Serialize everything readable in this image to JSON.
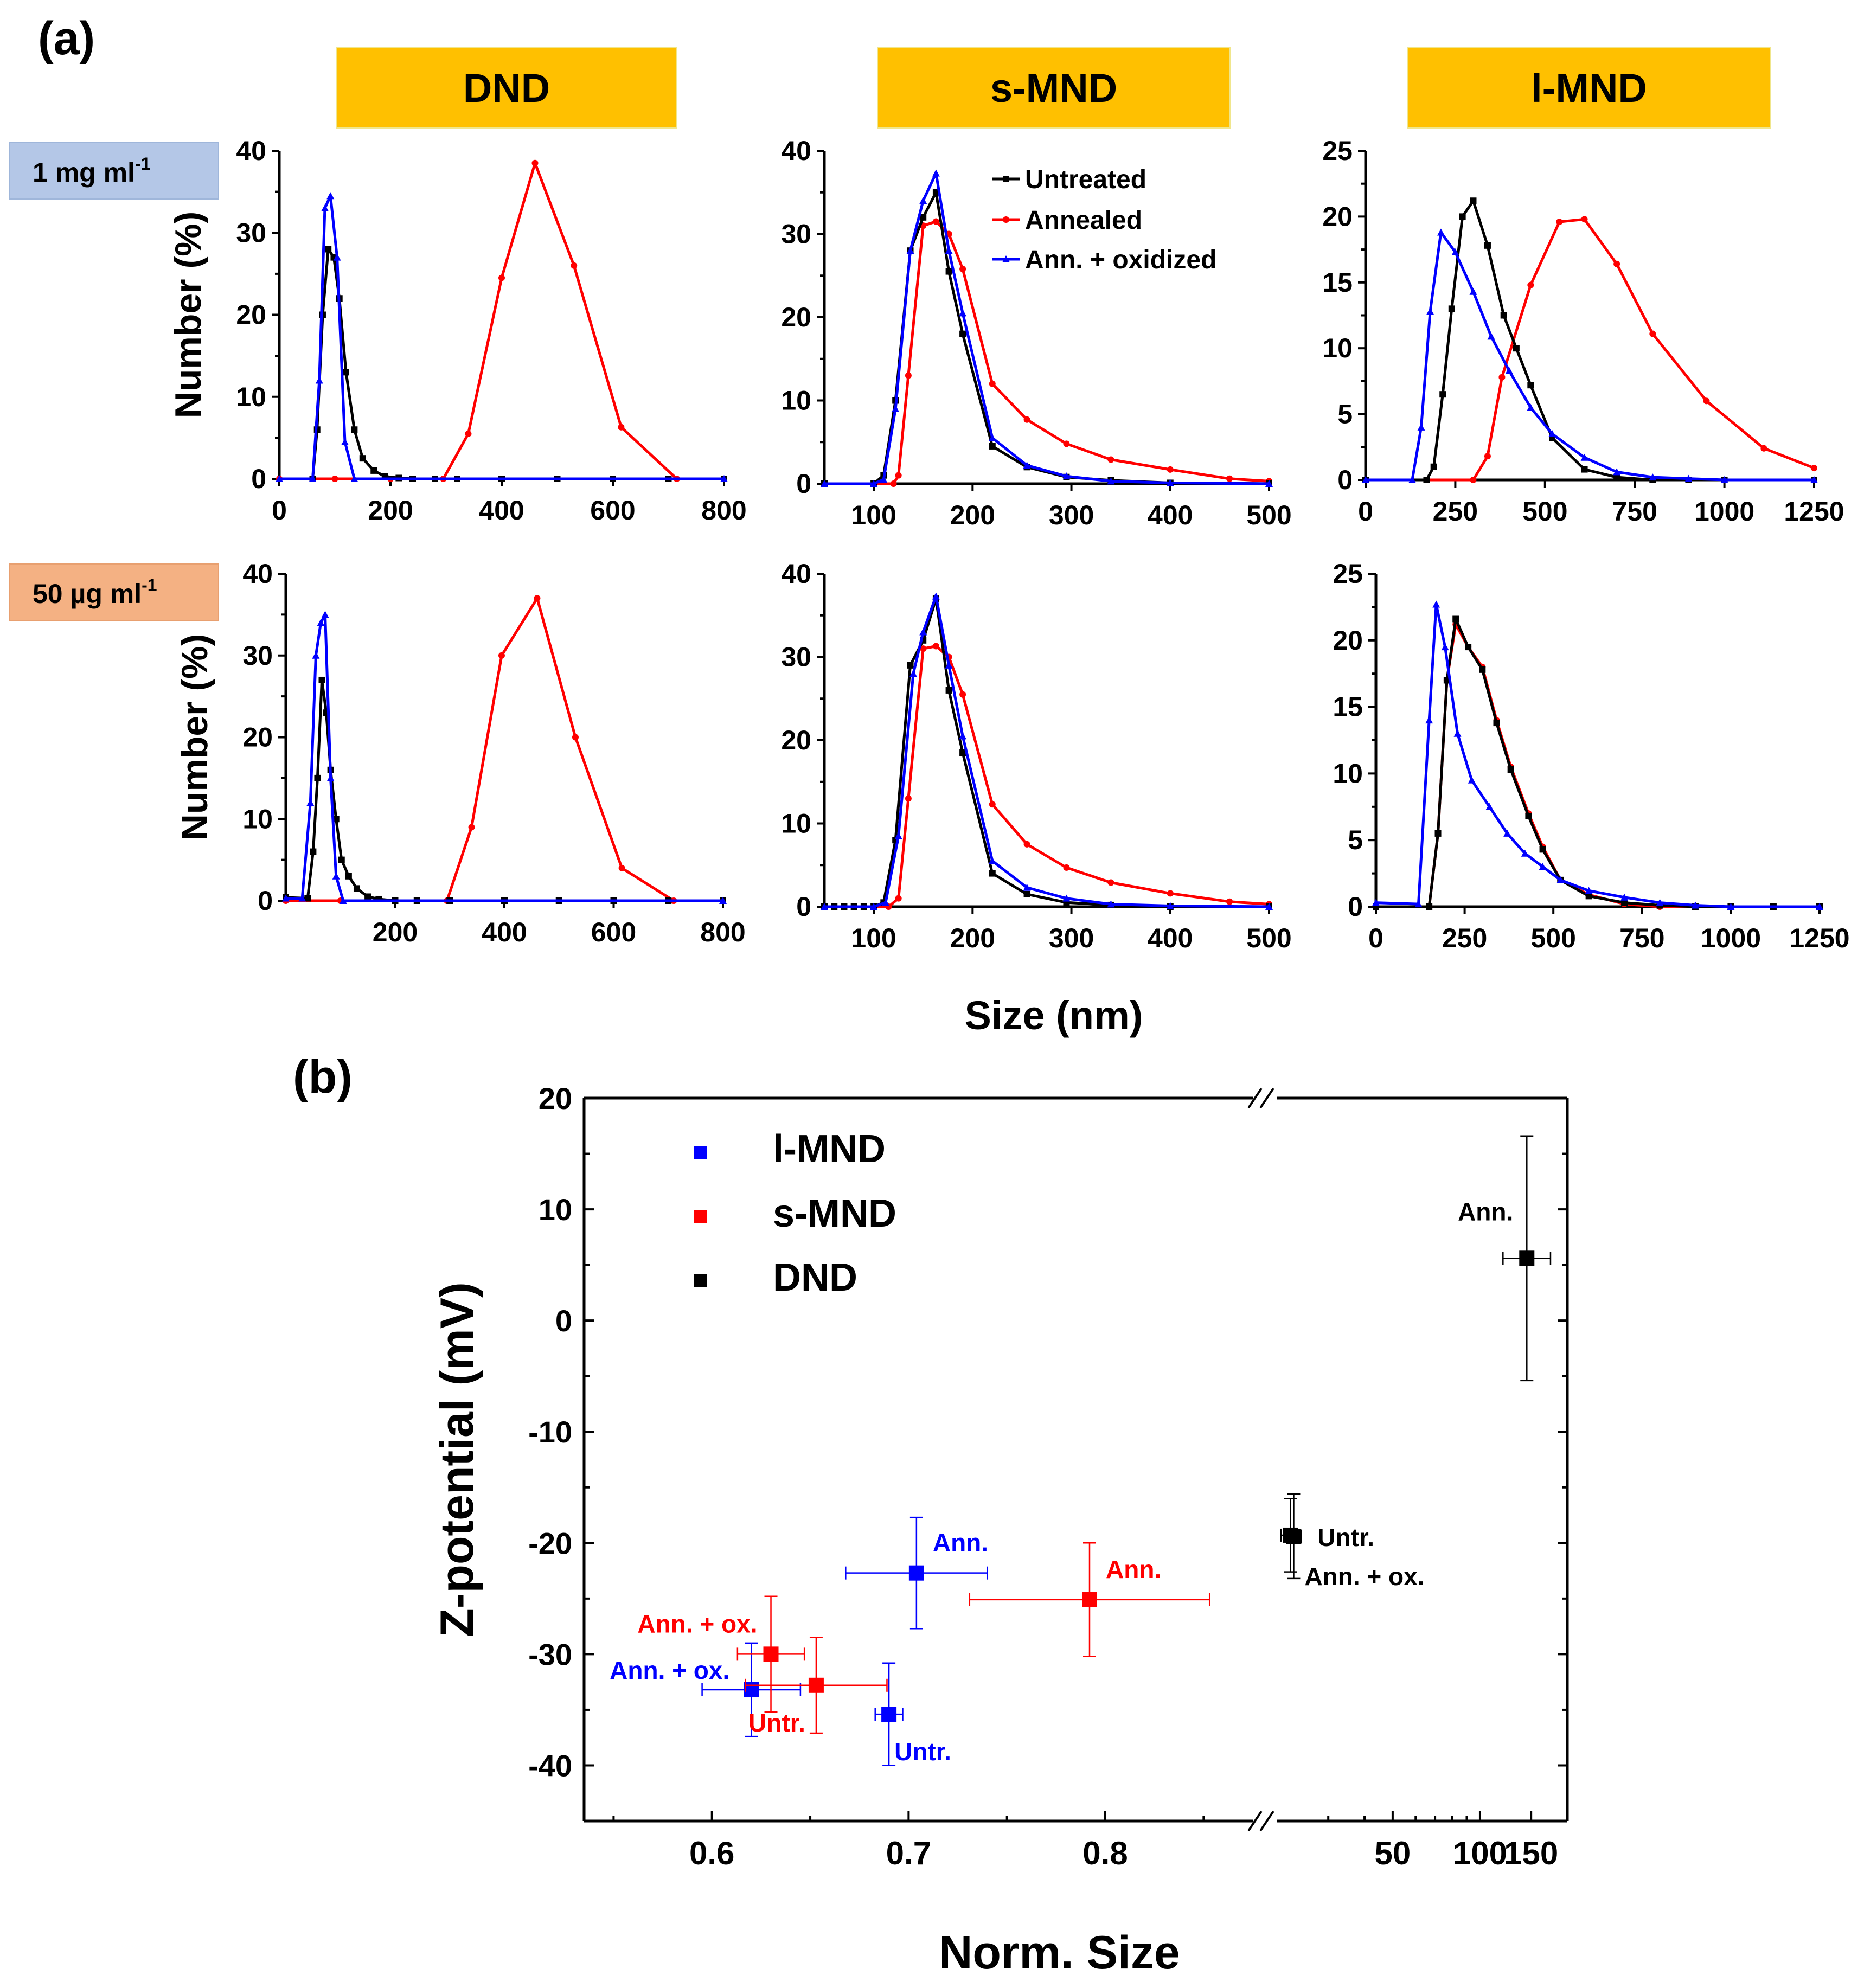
{
  "panel_a_label": "(a)",
  "panel_b_label": "(b)",
  "colors": {
    "untreated": "#000000",
    "annealed": "#ff0000",
    "oxidized": "#0000ff",
    "header": "#FFC000",
    "conc1": "#B4C7E7",
    "conc2": "#F4B183"
  },
  "headers": [
    "DND",
    "s-MND",
    "l-MND"
  ],
  "concentrations": {
    "row1_main": "1 mg ml",
    "row1_sup": "-1",
    "row2_main": "50 µg ml",
    "row2_sup": "-1"
  },
  "shared_xlabel": "Size (nm)",
  "chart_data": [
    {
      "type": "line",
      "id": "a-dnd-1mg",
      "title": "DND",
      "concentration": "1 mg ml-1",
      "ylabel": "Number (%)",
      "xlim": [
        0,
        800
      ],
      "ylim": [
        0,
        40
      ],
      "xticks": [
        0,
        200,
        400,
        600,
        800
      ],
      "yticks": [
        0,
        10,
        20,
        30,
        40
      ],
      "series": [
        {
          "name": "Untreated",
          "color": "#000000",
          "marker": "square",
          "x": [
            60,
            68,
            78,
            88,
            98,
            108,
            120,
            135,
            150,
            170,
            190,
            215,
            240,
            280,
            320,
            400,
            500,
            600,
            700,
            800
          ],
          "y": [
            0,
            6,
            20,
            28,
            27,
            22,
            13,
            6,
            2.5,
            1,
            0.3,
            0.1,
            0,
            0,
            0,
            0,
            0,
            0,
            0,
            0
          ]
        },
        {
          "name": "Annealed",
          "color": "#ff0000",
          "marker": "circle",
          "x": [
            0,
            100,
            200,
            295,
            340,
            400,
            460,
            530,
            615,
            715,
            800
          ],
          "y": [
            0,
            0,
            0,
            0,
            5.5,
            24.5,
            38.5,
            26,
            6.3,
            0,
            0
          ]
        },
        {
          "name": "Ann. + oxidized",
          "color": "#0000ff",
          "marker": "triangle",
          "x": [
            0,
            60,
            72,
            82,
            92,
            104,
            118,
            135,
            800
          ],
          "y": [
            0,
            0,
            12,
            33,
            34.5,
            27,
            4.5,
            0,
            0
          ]
        }
      ]
    },
    {
      "type": "line",
      "id": "a-smnd-1mg",
      "title": "s-MND",
      "concentration": "1 mg ml-1",
      "ylabel": "",
      "xlim": [
        50,
        500
      ],
      "ylim": [
        0,
        40
      ],
      "xticks": [
        100,
        200,
        300,
        400,
        500
      ],
      "yticks": [
        0,
        10,
        20,
        30,
        40
      ],
      "series": [
        {
          "name": "Untreated",
          "color": "#000000",
          "marker": "square",
          "x": [
            50,
            100,
            110,
            122,
            137,
            150,
            163,
            176,
            190,
            220,
            255,
            295,
            340,
            400,
            500
          ],
          "y": [
            0,
            0,
            1,
            10,
            28,
            32,
            35,
            25.5,
            18,
            4.5,
            2,
            0.8,
            0.4,
            0.1,
            0
          ]
        },
        {
          "name": "Annealed",
          "color": "#ff0000",
          "marker": "circle",
          "x": [
            50,
            120,
            125,
            135,
            150,
            163,
            176,
            190,
            220,
            255,
            295,
            340,
            400,
            460,
            500
          ],
          "y": [
            0,
            0,
            1,
            13,
            31,
            31.5,
            30,
            25.8,
            12,
            7.7,
            4.8,
            2.9,
            1.7,
            0.6,
            0.3
          ]
        },
        {
          "name": "Ann. + oxidized",
          "color": "#0000ff",
          "marker": "triangle",
          "x": [
            50,
            100,
            110,
            122,
            137,
            150,
            163,
            176,
            190,
            220,
            255,
            295,
            340,
            400,
            500
          ],
          "y": [
            0,
            0,
            0.5,
            9,
            28,
            34,
            37.3,
            28,
            20.5,
            5.5,
            2.2,
            0.9,
            0.3,
            0.1,
            0
          ]
        }
      ]
    },
    {
      "type": "line",
      "id": "a-lmnd-1mg",
      "title": "l-MND",
      "concentration": "1 mg ml-1",
      "ylabel": "",
      "xlim": [
        0,
        1250
      ],
      "ylim": [
        0,
        25
      ],
      "xticks": [
        0,
        250,
        500,
        750,
        1000,
        1250
      ],
      "yticks": [
        0,
        5,
        10,
        15,
        20,
        25
      ],
      "series": [
        {
          "name": "Untreated",
          "color": "#000000",
          "marker": "square",
          "x": [
            0,
            170,
            190,
            215,
            240,
            270,
            300,
            340,
            385,
            420,
            460,
            520,
            610,
            700,
            800,
            900,
            1000,
            1250
          ],
          "y": [
            0,
            0,
            1,
            6.5,
            13,
            20,
            21.2,
            17.8,
            12.5,
            10,
            7.2,
            3.2,
            0.8,
            0.2,
            0,
            0,
            0,
            0
          ]
        },
        {
          "name": "Annealed",
          "color": "#ff0000",
          "marker": "circle",
          "x": [
            0,
            300,
            340,
            380,
            460,
            540,
            610,
            700,
            800,
            950,
            1110,
            1250
          ],
          "y": [
            0,
            0,
            1.8,
            7.8,
            14.8,
            19.6,
            19.8,
            16.4,
            11.1,
            6,
            2.4,
            0.9
          ]
        },
        {
          "name": "Ann. + oxidized",
          "color": "#0000ff",
          "marker": "triangle",
          "x": [
            0,
            130,
            155,
            180,
            210,
            250,
            300,
            350,
            400,
            460,
            520,
            610,
            700,
            800,
            900,
            1000,
            1250
          ],
          "y": [
            0,
            0,
            4,
            12.8,
            18.8,
            17.3,
            14.3,
            10.9,
            8.3,
            5.5,
            3.5,
            1.7,
            0.6,
            0.2,
            0.1,
            0,
            0
          ]
        }
      ]
    },
    {
      "type": "line",
      "id": "a-dnd-50ug",
      "title": "DND",
      "concentration": "50 µg ml-1",
      "ylabel": "Number (%)",
      "xlim": [
        0,
        800
      ],
      "ylim": [
        0,
        40
      ],
      "xticks": [
        200,
        400,
        600,
        800
      ],
      "yticks": [
        0,
        10,
        20,
        30,
        40
      ],
      "series": [
        {
          "name": "Untreated",
          "color": "#000000",
          "marker": "square",
          "x": [
            0,
            40,
            50,
            58,
            66,
            74,
            82,
            92,
            102,
            115,
            130,
            150,
            170,
            200,
            240,
            300,
            400,
            500,
            600,
            700,
            800
          ],
          "y": [
            0.4,
            0.3,
            6,
            15,
            27,
            23,
            16,
            10,
            5,
            3,
            1.5,
            0.5,
            0.2,
            0,
            0,
            0,
            0,
            0,
            0,
            0,
            0
          ]
        },
        {
          "name": "Annealed",
          "color": "#ff0000",
          "marker": "circle",
          "x": [
            0,
            100,
            200,
            295,
            340,
            395,
            460,
            530,
            615,
            710,
            800
          ],
          "y": [
            0,
            0,
            0,
            0,
            9,
            30,
            37,
            20,
            4,
            0,
            0
          ]
        },
        {
          "name": "Ann. + oxidized",
          "color": "#0000ff",
          "marker": "triangle",
          "x": [
            0,
            30,
            45,
            55,
            64,
            72,
            82,
            92,
            105,
            800
          ],
          "y": [
            0.3,
            0.3,
            12,
            30,
            34,
            35,
            15,
            3,
            0,
            0
          ]
        }
      ]
    },
    {
      "type": "line",
      "id": "a-smnd-50ug",
      "title": "s-MND",
      "concentration": "50 µg ml-1",
      "ylabel": "",
      "xlim": [
        50,
        500
      ],
      "ylim": [
        0,
        40
      ],
      "xticks": [
        100,
        200,
        300,
        400,
        500
      ],
      "yticks": [
        0,
        10,
        20,
        30,
        40
      ],
      "series": [
        {
          "name": "Untreated",
          "color": "#000000",
          "marker": "square",
          "x": [
            50,
            60,
            70,
            80,
            90,
            100,
            110,
            122,
            137,
            150,
            163,
            176,
            190,
            220,
            255,
            295,
            340,
            400,
            500
          ],
          "y": [
            0,
            0,
            0,
            0,
            0,
            0,
            0.5,
            8,
            29,
            32,
            37,
            26,
            18.5,
            4,
            1.5,
            0.5,
            0.2,
            0,
            0
          ]
        },
        {
          "name": "Annealed",
          "color": "#ff0000",
          "marker": "circle",
          "x": [
            50,
            115,
            125,
            135,
            150,
            163,
            176,
            190,
            220,
            255,
            295,
            340,
            400,
            460,
            500
          ],
          "y": [
            0,
            0,
            1,
            13,
            31,
            31.3,
            30,
            25.5,
            12.3,
            7.5,
            4.7,
            2.9,
            1.6,
            0.6,
            0.3
          ]
        },
        {
          "name": "Ann. + oxidized",
          "color": "#0000ff",
          "marker": "triangle",
          "x": [
            50,
            100,
            112,
            125,
            140,
            150,
            163,
            176,
            190,
            220,
            255,
            295,
            340,
            400,
            500
          ],
          "y": [
            0,
            0,
            0.5,
            8.5,
            28,
            33,
            37.3,
            29,
            20.5,
            5.5,
            2.3,
            1,
            0.3,
            0.1,
            0
          ]
        }
      ]
    },
    {
      "type": "line",
      "id": "a-lmnd-50ug",
      "title": "l-MND",
      "concentration": "50 µg ml-1",
      "ylabel": "",
      "xlim": [
        0,
        1250
      ],
      "ylim": [
        0,
        25
      ],
      "xticks": [
        0,
        250,
        500,
        750,
        1000,
        1250
      ],
      "yticks": [
        0,
        5,
        10,
        15,
        20,
        25
      ],
      "series": [
        {
          "name": "Untreated",
          "color": "#000000",
          "marker": "square",
          "x": [
            0,
            150,
            175,
            200,
            225,
            260,
            300,
            340,
            380,
            430,
            470,
            520,
            600,
            700,
            800,
            900,
            1000,
            1120,
            1250
          ],
          "y": [
            0,
            0,
            5.5,
            17,
            21.6,
            19.5,
            17.8,
            13.8,
            10.3,
            6.8,
            4.3,
            2,
            0.8,
            0.3,
            0.1,
            0,
            0,
            0,
            0
          ]
        },
        {
          "name": "Annealed",
          "color": "#ff0000",
          "marker": "circle",
          "x": [
            0,
            150,
            175,
            200,
            225,
            260,
            300,
            340,
            380,
            430,
            470,
            520,
            600,
            700,
            800,
            900,
            1000,
            1250
          ],
          "y": [
            0,
            0,
            5.5,
            17,
            21.2,
            19.5,
            18,
            14,
            10.5,
            7,
            4.5,
            2,
            0.9,
            0.2,
            0,
            0,
            0,
            0
          ]
        },
        {
          "name": "Ann. + oxidized",
          "color": "#0000ff",
          "marker": "triangle",
          "x": [
            0,
            120,
            150,
            170,
            195,
            230,
            270,
            320,
            370,
            420,
            470,
            520,
            600,
            700,
            800,
            900,
            1000,
            1250
          ],
          "y": [
            0.3,
            0.2,
            14,
            22.7,
            19.5,
            13,
            9.5,
            7.5,
            5.5,
            4,
            3,
            2,
            1.2,
            0.7,
            0.3,
            0.1,
            0,
            0
          ]
        }
      ]
    },
    {
      "type": "scatter",
      "id": "b-zpotential",
      "xlabel": "Norm. Size",
      "ylabel": "Z-potential (mV)",
      "ylim": [
        -45,
        20
      ],
      "yticks": [
        -40,
        -30,
        -20,
        -10,
        0,
        10,
        20
      ],
      "x_segment_linear": {
        "range": [
          0.535,
          0.875
        ],
        "ticks": [
          0.6,
          0.7,
          0.8
        ]
      },
      "x_segment_log": {
        "range": [
          20,
          200
        ],
        "ticks": [
          50,
          100,
          150
        ]
      },
      "axis_break": "//",
      "legend": [
        {
          "name": "l-MND",
          "color": "#0000ff"
        },
        {
          "name": "s-MND",
          "color": "#ff0000"
        },
        {
          "name": "DND",
          "color": "#000000"
        }
      ],
      "points": [
        {
          "group": "l-MND",
          "label": "Ann.",
          "color": "#0000ff",
          "x": 0.704,
          "y": -22.7,
          "xerr": 0.036,
          "yerr": 5,
          "label_pos": "upper-right"
        },
        {
          "group": "l-MND",
          "label": "Ann. + ox.",
          "color": "#0000ff",
          "x": 0.62,
          "y": -33.2,
          "xerr": 0.025,
          "yerr": 4.2,
          "label_pos": "left"
        },
        {
          "group": "l-MND",
          "label": "Untr.",
          "color": "#0000ff",
          "x": 0.69,
          "y": -35.4,
          "xerr": 0.007,
          "yerr": 4.6,
          "label_pos": "lower-right"
        },
        {
          "group": "s-MND",
          "label": "Ann.",
          "color": "#ff0000",
          "x": 0.792,
          "y": -25.1,
          "xerr": 0.061,
          "yerr": 5.1,
          "label_pos": "upper-right"
        },
        {
          "group": "s-MND",
          "label": "Ann. + ox.",
          "color": "#ff0000",
          "x": 0.63,
          "y": -30.0,
          "xerr": 0.017,
          "yerr": 5.2,
          "label_pos": "upper-left"
        },
        {
          "group": "s-MND",
          "label": "Untr.",
          "color": "#ff0000",
          "x": 0.653,
          "y": -32.8,
          "xerr": 0.036,
          "yerr": 4.3,
          "label_pos": "lower-left"
        },
        {
          "group": "DND",
          "label": "Ann.",
          "color": "#000000",
          "x": 145,
          "y": 5.6,
          "xerr_log": [
            120,
            175
          ],
          "yerr": 11,
          "label_pos": "upper-left"
        },
        {
          "group": "DND",
          "label": "Untr.",
          "color": "#000000",
          "x": 22.2,
          "y": -19.3,
          "xerr_log": [
            20.6,
            23.8
          ],
          "yerr": 3.3,
          "label_pos": "right"
        },
        {
          "group": "DND",
          "label": "Ann. + ox.",
          "color": "#000000",
          "x": 22.8,
          "y": -19.4,
          "xerr_log": [
            21.5,
            24.2
          ],
          "yerr": 3.8,
          "label_pos": "lower-right"
        }
      ]
    }
  ]
}
